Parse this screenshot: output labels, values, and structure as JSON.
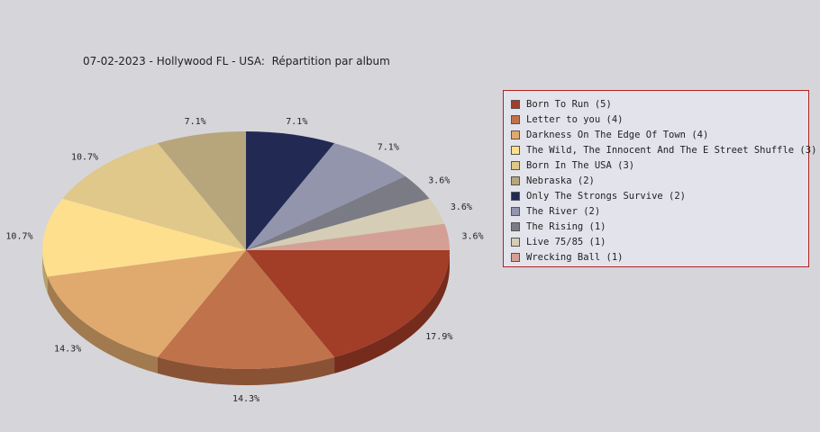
{
  "title": "07-02-2023 - Hollywood FL - USA:  Répartition par album",
  "chart_data": {
    "type": "pie",
    "title": "07-02-2023 - Hollywood FL - USA:  Répartition par album",
    "legend_position": "right",
    "slices": [
      {
        "label": "Born To Run (5)",
        "value": 5,
        "pct": "17.9%",
        "color": "#a23d28"
      },
      {
        "label": "Letter to you (4)",
        "value": 4,
        "pct": "14.3%",
        "color": "#c0724a"
      },
      {
        "label": "Darkness On The Edge Of Town (4)",
        "value": 4,
        "pct": "14.3%",
        "color": "#e0aa6e"
      },
      {
        "label": "The Wild, The Innocent And The E Street Shuffle (3)",
        "value": 3,
        "pct": "10.7%",
        "color": "#fddf8e"
      },
      {
        "label": "Born In The USA (3)",
        "value": 3,
        "pct": "10.7%",
        "color": "#e0c78a"
      },
      {
        "label": "Nebraska (2)",
        "value": 2,
        "pct": "7.1%",
        "color": "#b7a57c"
      },
      {
        "label": "Only The Strongs Survive (2)",
        "value": 2,
        "pct": "7.1%",
        "color": "#222a54"
      },
      {
        "label": "The River (2)",
        "value": 2,
        "pct": "7.1%",
        "color": "#9395ad"
      },
      {
        "label": "The Rising (1)",
        "value": 1,
        "pct": "3.6%",
        "color": "#7b7b85"
      },
      {
        "label": "Live 75/85 (1)",
        "value": 1,
        "pct": "3.6%",
        "color": "#d6cdb6"
      },
      {
        "label": "Wrecking Ball (1)",
        "value": 1,
        "pct": "3.6%",
        "color": "#d4a095"
      }
    ]
  }
}
